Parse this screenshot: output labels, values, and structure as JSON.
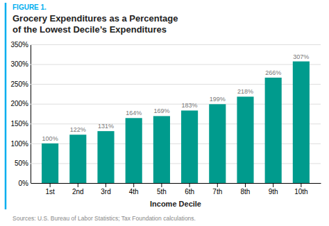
{
  "chart_data": {
    "type": "bar",
    "title": "Grocery Expenditures as a Percentage\nof the Lowest Decile’s Expenditures",
    "annotations": [
      "FIGURE 1.",
      "Sources: U.S. Bureau of Labor Statistics; Tax Foundation calculations."
    ],
    "x_label": "Income Decile",
    "categories": [
      "1st",
      "2nd",
      "3rd",
      "4th",
      "5th",
      "6th",
      "7th",
      "8th",
      "9th",
      "10th"
    ],
    "values": [
      100,
      122,
      131,
      164,
      169,
      183,
      199,
      218,
      266,
      307
    ],
    "value_labels": [
      "100%",
      "122%",
      "131%",
      "164%",
      "169%",
      "183%",
      "199%",
      "218%",
      "266%",
      "307%"
    ],
    "data_labels": true,
    "color": "#009B8D",
    "ylim": [
      0,
      350
    ],
    "yticks": [
      {
        "value": 0,
        "label": "0%"
      },
      {
        "value": 50,
        "label": "50%"
      },
      {
        "value": 100,
        "label": "100%"
      },
      {
        "value": 150,
        "label": "150%"
      },
      {
        "value": 200,
        "label": "200%"
      },
      {
        "value": 250,
        "label": "250%"
      },
      {
        "value": 300,
        "label": "300%"
      },
      {
        "value": 350,
        "label": "350%"
      }
    ],
    "grid": true
  }
}
